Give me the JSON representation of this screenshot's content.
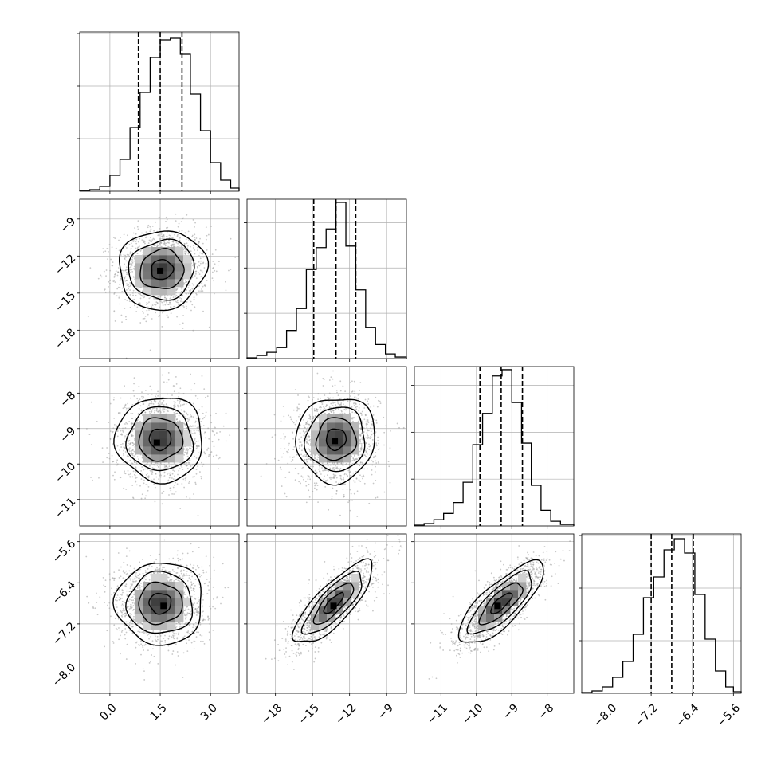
{
  "chart_data": {
    "type": "corner",
    "title": "",
    "grid": true,
    "parameters": [
      {
        "name": "",
        "range": [
          -0.9,
          3.85
        ],
        "ticks": [
          0.0,
          1.5,
          3.0
        ],
        "tick_labels": [
          "0.0",
          "1.5",
          "3.0"
        ],
        "quantiles": [
          0.85,
          1.5,
          2.15
        ],
        "hist_bins": [
          -0.9,
          -0.6,
          -0.3,
          0.0,
          0.3,
          0.6,
          0.9,
          1.2,
          1.5,
          1.8,
          2.1,
          2.4,
          2.7,
          3.0,
          3.3,
          3.6,
          3.85
        ],
        "hist_counts": [
          0.5,
          1,
          3,
          10,
          20,
          40,
          62,
          84,
          95,
          96,
          86,
          61,
          38,
          18,
          7,
          2
        ],
        "hist_ymax": 100,
        "hist_yticks": [
          33,
          66,
          99
        ]
      },
      {
        "name": "",
        "range": [
          -20.3,
          -7.4
        ],
        "ticks": [
          -18,
          -15,
          -12,
          -9
        ],
        "tick_labels": [
          "−18",
          "−15",
          "−12",
          "−9"
        ],
        "quantiles": [
          -14.9,
          -13.1,
          -11.5
        ],
        "hist_bins": [
          -20.3,
          -19.5,
          -18.7,
          -17.9,
          -17.1,
          -16.3,
          -15.5,
          -14.7,
          -13.9,
          -13.1,
          -12.3,
          -11.5,
          -10.7,
          -9.9,
          -9.1,
          -8.3,
          -7.4
        ],
        "hist_counts": [
          0.5,
          2,
          4,
          7,
          18,
          32,
          57,
          71,
          83,
          100,
          72,
          44,
          20,
          9,
          3,
          1
        ],
        "hist_ymax": 102,
        "hist_yticks": [
          29,
          58,
          87
        ]
      },
      {
        "name": "",
        "range": [
          -11.75,
          -7.25
        ],
        "ticks": [
          -11,
          -10,
          -9,
          -8
        ],
        "tick_labels": [
          "−11",
          "−10",
          "−9",
          "−8"
        ],
        "quantiles": [
          -9.9,
          -9.3,
          -8.7
        ],
        "hist_bins": [
          -11.75,
          -11.475,
          -11.2,
          -10.925,
          -10.65,
          -10.375,
          -10.1,
          -9.825,
          -9.55,
          -9.275,
          -9.0,
          -8.725,
          -8.45,
          -8.175,
          -7.9,
          -7.625,
          -7.25
        ],
        "hist_counts": [
          0.5,
          1.5,
          4,
          8,
          15,
          28,
          52,
          72,
          96,
          100,
          79,
          53,
          26,
          10,
          3,
          1
        ],
        "hist_ymax": 102,
        "hist_yticks": [
          30,
          60,
          90
        ]
      },
      {
        "name": "",
        "range": [
          -8.55,
          -5.45
        ],
        "ticks": [
          -8.0,
          -7.2,
          -6.4,
          -5.6
        ],
        "tick_labels": [
          "−8.0",
          "−7.2",
          "−6.4",
          "−5.6"
        ],
        "quantiles": [
          -7.2,
          -6.8,
          -6.38
        ],
        "hist_bins": [
          -8.55,
          -8.35,
          -8.15,
          -7.95,
          -7.75,
          -7.55,
          -7.35,
          -7.15,
          -6.95,
          -6.75,
          -6.55,
          -6.35,
          -6.15,
          -5.95,
          -5.75,
          -5.6,
          -5.45
        ],
        "hist_counts": [
          0.5,
          1.5,
          4,
          10,
          20,
          37,
          60,
          73,
          90,
          97,
          88,
          62,
          34,
          14,
          4,
          1
        ],
        "hist_ymax": 100,
        "hist_yticks": [
          33,
          66,
          99
        ]
      }
    ],
    "pair_panels": [
      {
        "x": 0,
        "y": 1,
        "center": [
          1.55,
          -13.1
        ],
        "sd": [
          0.65,
          1.6
        ],
        "corr": 0.05,
        "peak": [
          1.5,
          -13.2
        ],
        "n_samples": 1500
      },
      {
        "x": 0,
        "y": 2,
        "center": [
          1.5,
          -9.3
        ],
        "sd": [
          0.65,
          0.6
        ],
        "corr": 0.0,
        "peak": [
          1.4,
          -9.4
        ],
        "n_samples": 1500
      },
      {
        "x": 1,
        "y": 2,
        "center": [
          -13.1,
          -9.3
        ],
        "sd": [
          1.6,
          0.6
        ],
        "corr": 0.05,
        "peak": [
          -13.2,
          -9.35
        ],
        "n_samples": 1500
      },
      {
        "x": 0,
        "y": 3,
        "center": [
          1.5,
          -6.8
        ],
        "sd": [
          0.65,
          0.4
        ],
        "corr": 0.0,
        "peak": [
          1.6,
          -6.85
        ],
        "n_samples": 1500
      },
      {
        "x": 1,
        "y": 3,
        "center": [
          -13.3,
          -6.8
        ],
        "sd": [
          1.6,
          0.4
        ],
        "corr": 0.8,
        "peak": [
          -13.3,
          -6.85
        ],
        "n_samples": 1500
      },
      {
        "x": 2,
        "y": 3,
        "center": [
          -9.3,
          -6.8
        ],
        "sd": [
          0.6,
          0.4
        ],
        "corr": 0.78,
        "peak": [
          -9.4,
          -6.85
        ],
        "n_samples": 1500
      }
    ],
    "contour_levels_sigma": [
      0.5,
      1.0,
      1.5,
      2.0
    ],
    "colors": {
      "line": "#000000",
      "grid": "#b0b0b0",
      "points": "#9a9a9a"
    }
  }
}
